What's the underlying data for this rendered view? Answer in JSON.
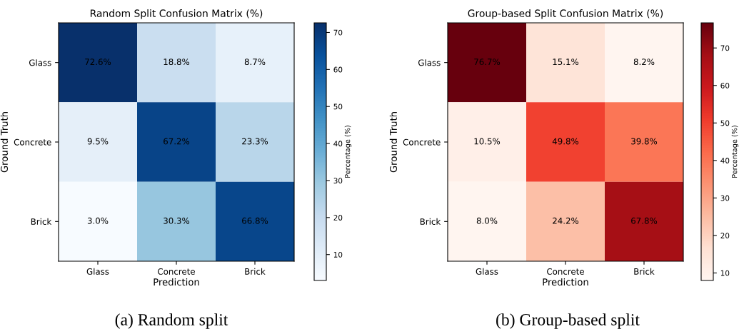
{
  "chart_data": [
    {
      "type": "heatmap",
      "title": "Random Split Confusion Matrix (%)",
      "xlabel": "Prediction",
      "ylabel": "Ground Truth",
      "clabel": "Percentage (%)",
      "categories": [
        "Glass",
        "Concrete",
        "Brick"
      ],
      "y_categories": [
        "Glass",
        "Concrete",
        "Brick"
      ],
      "cells": [
        [
          72.6,
          18.8,
          8.7
        ],
        [
          9.5,
          67.2,
          23.3
        ],
        [
          3.0,
          30.3,
          66.8
        ]
      ],
      "cell_labels": [
        [
          "72.6%",
          "18.8%",
          "8.7%"
        ],
        [
          "9.5%",
          "67.2%",
          "23.3%"
        ],
        [
          "3.0%",
          "30.3%",
          "66.8%"
        ]
      ],
      "clim": [
        3.0,
        72.6
      ],
      "cticks": [
        10,
        20,
        30,
        40,
        50,
        60,
        70
      ],
      "annotations": [
        "(a) Random split"
      ]
    },
    {
      "type": "heatmap",
      "title": "Group-based Split Confusion Matrix (%)",
      "xlabel": "Prediction",
      "ylabel": "Ground Truth",
      "clabel": "Percentage (%)",
      "categories": [
        "Glass",
        "Concrete",
        "Brick"
      ],
      "y_categories": [
        "Glass",
        "Concrete",
        "Brick"
      ],
      "cells": [
        [
          76.7,
          15.1,
          8.2
        ],
        [
          10.5,
          49.8,
          39.8
        ],
        [
          8.0,
          24.2,
          67.8
        ]
      ],
      "cell_labels": [
        [
          "76.7%",
          "15.1%",
          "8.2%"
        ],
        [
          "10.5%",
          "49.8%",
          "39.8%"
        ],
        [
          "8.0%",
          "24.2%",
          "67.8%"
        ]
      ],
      "clim": [
        8.0,
        76.7
      ],
      "cticks": [
        10,
        20,
        30,
        40,
        50,
        60,
        70
      ],
      "annotations": [
        "(b) Group-based split"
      ]
    }
  ]
}
